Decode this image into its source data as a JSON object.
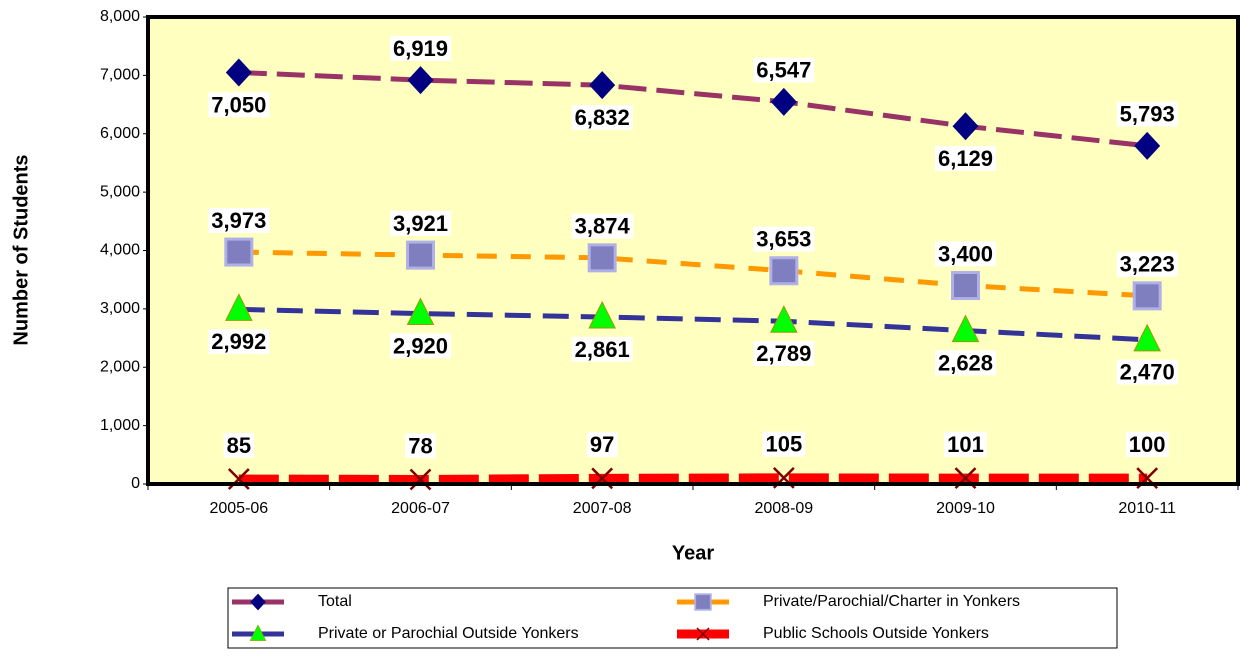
{
  "chart_data": {
    "type": "line",
    "y_label": "Number of Students",
    "x_label": "Year",
    "categories": [
      "2005-06",
      "2006-07",
      "2007-08",
      "2008-09",
      "2009-10",
      "2010-11"
    ],
    "series": [
      {
        "name": "Total",
        "color": "#993366",
        "marker_color": "#000080",
        "marker": "diamond",
        "values": [
          7050,
          6919,
          6832,
          6547,
          6129,
          5793
        ],
        "value_labels": [
          "7,050",
          "6,919",
          "6,832",
          "6,547",
          "6,129",
          "5,793"
        ]
      },
      {
        "name": "Private/Parochial/Charter in Yonkers",
        "color": "#FF9900",
        "marker_color": "#7F7FBF",
        "marker": "square",
        "values": [
          3973,
          3921,
          3874,
          3653,
          3400,
          3223
        ],
        "value_labels": [
          "3,973",
          "3,921",
          "3,874",
          "3,653",
          "3,400",
          "3,223"
        ]
      },
      {
        "name": "Private or Parochial Outside Yonkers",
        "color": "#333399",
        "marker_color": "#00FF00",
        "marker": "triangle",
        "values": [
          2992,
          2920,
          2861,
          2789,
          2628,
          2470
        ],
        "value_labels": [
          "2,992",
          "2,920",
          "2,861",
          "2,789",
          "2,628",
          "2,470"
        ]
      },
      {
        "name": "Public Schools Outside Yonkers",
        "color": "#FF0000",
        "marker_color": "#800000",
        "marker": "x",
        "values": [
          85,
          78,
          97,
          105,
          101,
          100
        ]
      }
    ],
    "ylim": [
      0,
      8000
    ],
    "yticks": [
      0,
      {
        "value": 1000,
        "label": "1,000"
      },
      {
        "value": 2000,
        "label": "2,000"
      },
      {
        "value": 3000,
        "label": "3,000"
      },
      {
        "value": 4000,
        "label": "4,000"
      },
      {
        "value": 5000,
        "label": "5,000"
      },
      {
        "value": 6000,
        "label": "6,000"
      },
      {
        "value": 7000,
        "label": "7,000"
      },
      {
        "value": 8000,
        "label": "8,000"
      }
    ],
    "background": "#FFFFC0"
  }
}
